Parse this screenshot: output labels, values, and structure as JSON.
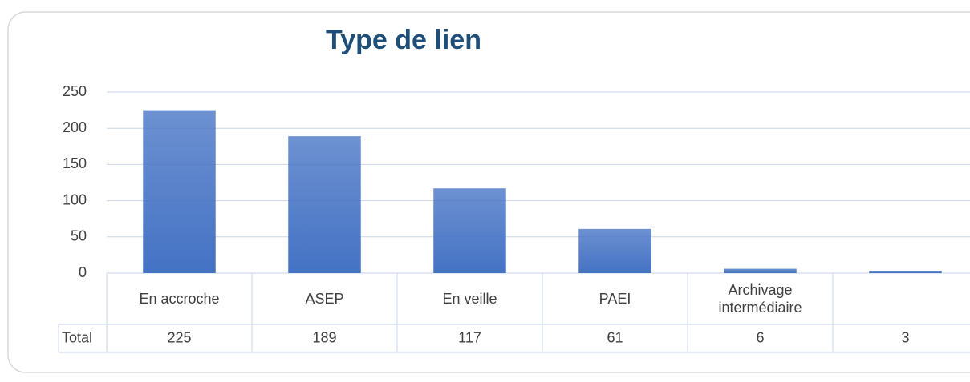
{
  "chart_data": {
    "type": "bar",
    "title": "Type de lien",
    "categories": [
      "En accroche",
      "ASEP",
      "En veille",
      "PAEI",
      "Archivage intermédiaire",
      null
    ],
    "series": [
      {
        "name": "Total",
        "color": "#4472c4",
        "values": [
          225,
          189,
          117,
          61,
          6,
          3
        ]
      }
    ],
    "ylim": [
      0,
      250
    ],
    "yticks": [
      0,
      50,
      100,
      150,
      200,
      250
    ],
    "grid": true
  }
}
